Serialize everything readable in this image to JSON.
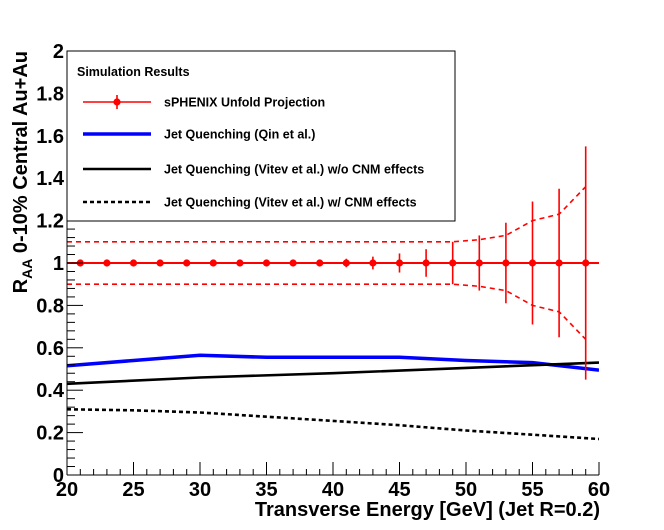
{
  "chart_data": {
    "type": "line",
    "title": "",
    "xlabel": "Transverse Energy [GeV] (Jet R=0.2)",
    "ylabel_main": "R",
    "ylabel_sub": "AA",
    "ylabel_rest": " 0-10% Central Au+Au",
    "xlim": [
      20,
      60
    ],
    "ylim": [
      0,
      2
    ],
    "x_ticks": [
      20,
      25,
      30,
      35,
      40,
      45,
      50,
      55,
      60
    ],
    "y_ticks": [
      0,
      0.2,
      0.4,
      0.6,
      0.8,
      1,
      1.2,
      1.4,
      1.6,
      1.8,
      2
    ],
    "x_tick_labels": [
      "20",
      "25",
      "30",
      "35",
      "40",
      "45",
      "50",
      "55",
      "60"
    ],
    "y_tick_labels": [
      "0",
      "0.2",
      "0.4",
      "0.6",
      "0.8",
      "1",
      "1.2",
      "1.4",
      "1.6",
      "1.8",
      "2"
    ],
    "grid": false,
    "legend": {
      "placement": "top-left",
      "header": "Simulation Results"
    },
    "series": [
      {
        "name": "sPHENIX Unfold Projection",
        "style": "markers-errorbars",
        "color": "#ff0000",
        "x": [
          21,
          23,
          25,
          27,
          29,
          31,
          33,
          35,
          37,
          39,
          41,
          43,
          45,
          47,
          49,
          51,
          53,
          55,
          57,
          59
        ],
        "y": [
          1,
          1,
          1,
          1,
          1,
          1,
          1,
          1,
          1,
          1,
          1,
          1,
          1,
          1,
          1,
          1,
          1,
          1,
          1,
          1
        ],
        "err": [
          0.005,
          0.005,
          0.005,
          0.005,
          0.005,
          0.005,
          0.005,
          0.005,
          0.008,
          0.012,
          0.02,
          0.03,
          0.045,
          0.065,
          0.1,
          0.13,
          0.19,
          0.29,
          0.35,
          0.55
        ],
        "band_x": [
          20,
          21,
          23,
          25,
          27,
          29,
          31,
          33,
          35,
          37,
          39,
          41,
          43,
          45,
          47,
          49,
          51,
          53,
          55,
          57,
          59
        ],
        "band_upper": [
          1.1,
          1.1,
          1.1,
          1.1,
          1.1,
          1.1,
          1.1,
          1.1,
          1.1,
          1.1,
          1.1,
          1.1,
          1.1,
          1.1,
          1.1,
          1.1,
          1.11,
          1.13,
          1.2,
          1.23,
          1.36
        ],
        "band_lower": [
          0.9,
          0.9,
          0.9,
          0.9,
          0.9,
          0.9,
          0.9,
          0.9,
          0.9,
          0.9,
          0.9,
          0.9,
          0.9,
          0.9,
          0.9,
          0.9,
          0.89,
          0.87,
          0.8,
          0.77,
          0.64
        ]
      },
      {
        "name": "Jet Quenching (Qin et al.)",
        "style": "solid-thick",
        "color": "#0000ff",
        "x": [
          20,
          25,
          30,
          35,
          40,
          45,
          50,
          55,
          60
        ],
        "y": [
          0.515,
          0.54,
          0.565,
          0.555,
          0.555,
          0.555,
          0.54,
          0.53,
          0.495
        ]
      },
      {
        "name": "Jet Quenching (Vitev et al.) w/o CNM effects",
        "style": "solid",
        "color": "#000000",
        "x": [
          20,
          30,
          40,
          50,
          60
        ],
        "y": [
          0.43,
          0.46,
          0.48,
          0.505,
          0.53
        ]
      },
      {
        "name": "Jet Quenching (Vitev et al.) w/ CNM effects",
        "style": "dashed",
        "color": "#000000",
        "x": [
          20,
          25,
          30,
          35,
          40,
          45,
          50,
          55,
          60
        ],
        "y": [
          0.31,
          0.305,
          0.295,
          0.275,
          0.255,
          0.235,
          0.21,
          0.19,
          0.17
        ]
      }
    ]
  }
}
